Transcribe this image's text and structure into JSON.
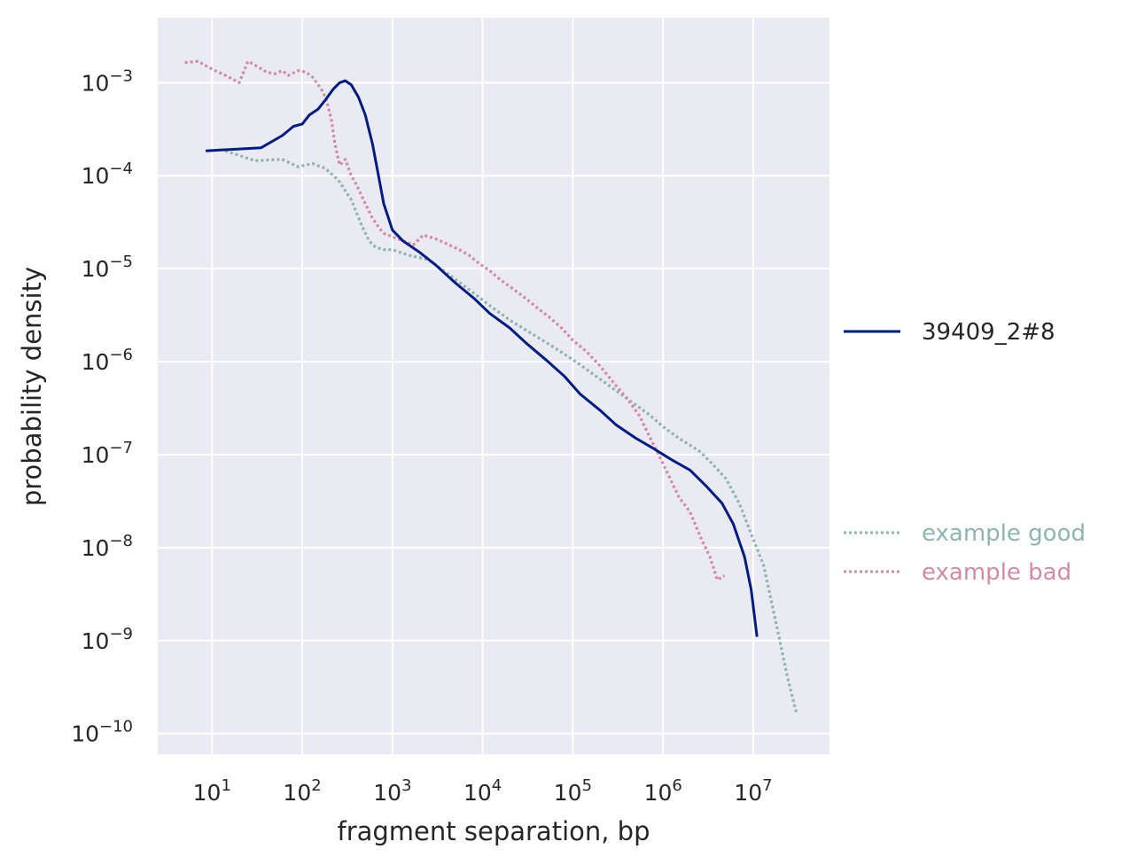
{
  "chart_data": {
    "type": "line",
    "title": "",
    "xlabel": "fragment separation, bp",
    "ylabel": "probability density",
    "xscale": "log",
    "yscale": "log",
    "xlim": [
      2.5,
      70000000
    ],
    "ylim": [
      6e-11,
      0.005
    ],
    "grid": true,
    "background": "#eaeaf2",
    "x_ticks": [
      {
        "value": 10,
        "base": "10",
        "exp": "1"
      },
      {
        "value": 100,
        "base": "10",
        "exp": "2"
      },
      {
        "value": 1000,
        "base": "10",
        "exp": "3"
      },
      {
        "value": 10000,
        "base": "10",
        "exp": "4"
      },
      {
        "value": 100000,
        "base": "10",
        "exp": "5"
      },
      {
        "value": 1000000,
        "base": "10",
        "exp": "6"
      },
      {
        "value": 10000000,
        "base": "10",
        "exp": "7"
      }
    ],
    "y_ticks": [
      {
        "value": 0.001,
        "base": "10",
        "exp": "−3"
      },
      {
        "value": 0.0001,
        "base": "10",
        "exp": "−4"
      },
      {
        "value": 1e-05,
        "base": "10",
        "exp": "−5"
      },
      {
        "value": 1e-06,
        "base": "10",
        "exp": "−6"
      },
      {
        "value": 1e-07,
        "base": "10",
        "exp": "−7"
      },
      {
        "value": 1e-08,
        "base": "10",
        "exp": "−8"
      },
      {
        "value": 1e-09,
        "base": "10",
        "exp": "−9"
      },
      {
        "value": 1e-10,
        "base": "10",
        "exp": "−10"
      }
    ],
    "series": [
      {
        "name": "39409_2#8",
        "color": "#001c7f",
        "style": "solid",
        "x": [
          8.5,
          35,
          60,
          80,
          100,
          120,
          150,
          180,
          220,
          260,
          300,
          350,
          420,
          500,
          600,
          700,
          800,
          1000,
          1300,
          2000,
          3000,
          5000,
          8000,
          12000,
          20000,
          30000,
          50000,
          80000,
          120000,
          200000,
          300000,
          500000,
          800000,
          1200000,
          2000000,
          3000000,
          4500000,
          6000000,
          8000000,
          9500000,
          11000000
        ],
        "y": [
          0.000185,
          0.0002,
          0.00027,
          0.00034,
          0.00036,
          0.00045,
          0.00052,
          0.00065,
          0.00085,
          0.001,
          0.00105,
          0.00095,
          0.0007,
          0.00045,
          0.00022,
          0.0001,
          5e-05,
          2.6e-05,
          2e-05,
          1.5e-05,
          1.1e-05,
          7e-06,
          4.8e-06,
          3.3e-06,
          2.3e-06,
          1.6e-06,
          1.05e-06,
          7e-07,
          4.5e-07,
          3e-07,
          2.1e-07,
          1.5e-07,
          1.15e-07,
          9e-08,
          6.8e-08,
          4.6e-08,
          3e-08,
          1.8e-08,
          8e-09,
          3.5e-09,
          1.1e-09
        ]
      },
      {
        "name": "example good",
        "color": "#8fb4b0",
        "style": "dotted",
        "x": [
          14,
          30,
          60,
          90,
          130,
          180,
          250,
          350,
          450,
          550,
          650,
          800,
          1000,
          1500,
          2500,
          4000,
          7000,
          12000,
          20000,
          35000,
          60000,
          100000,
          200000,
          400000,
          700000,
          1000000,
          1500000,
          2500000,
          3500000,
          5000000,
          7000000,
          9000000,
          13000000,
          18000000,
          24000000,
          30000000
        ],
        "y": [
          0.000185,
          0.000145,
          0.00015,
          0.000125,
          0.000135,
          0.00012,
          9e-05,
          5.5e-05,
          3e-05,
          2e-05,
          1.7e-05,
          1.6e-05,
          1.6e-05,
          1.4e-05,
          1.25e-05,
          9e-06,
          6e-06,
          4e-06,
          2.8e-06,
          2e-06,
          1.45e-06,
          1.05e-06,
          6.5e-07,
          4e-07,
          2.7e-07,
          2e-07,
          1.5e-07,
          1.1e-07,
          8e-08,
          5.5e-08,
          3e-08,
          1.6e-08,
          6.5e-09,
          1.5e-09,
          4e-10,
          1.7e-10
        ]
      },
      {
        "name": "example bad",
        "color": "#d28ba6",
        "style": "dotted",
        "x": [
          5,
          7,
          10,
          14,
          20,
          25,
          30,
          40,
          50,
          60,
          70,
          90,
          110,
          130,
          150,
          170,
          190,
          210,
          230,
          260,
          300,
          350,
          400,
          500,
          600,
          700,
          800,
          1000,
          1300,
          1700,
          2200,
          3000,
          4000,
          5500,
          7000,
          9000,
          12000,
          16000,
          22000,
          30000,
          40000,
          55000,
          75000,
          100000,
          140000,
          200000,
          280000,
          400000,
          550000,
          700000,
          850000,
          1000000,
          1200000,
          1500000,
          2000000,
          2600000,
          3300000,
          4000000,
          4800000
        ],
        "y": [
          0.00165,
          0.0017,
          0.0014,
          0.0012,
          0.001,
          0.0017,
          0.00155,
          0.0013,
          0.00125,
          0.00135,
          0.0012,
          0.00135,
          0.0013,
          0.00115,
          0.00095,
          0.0008,
          0.0006,
          0.0004,
          0.00022,
          0.00013,
          0.00015,
          0.0001,
          8e-05,
          5e-05,
          3.5e-05,
          2.8e-05,
          2.4e-05,
          2.2e-05,
          2e-05,
          1.8e-05,
          2.3e-05,
          2.1e-05,
          1.85e-05,
          1.6e-05,
          1.4e-05,
          1.15e-05,
          9.5e-06,
          7.5e-06,
          6e-06,
          4.8e-06,
          3.8e-06,
          3e-06,
          2.3e-06,
          1.7e-06,
          1.3e-06,
          9e-07,
          6e-07,
          4e-07,
          2.6e-07,
          1.6e-07,
          1.1e-07,
          8e-08,
          5.5e-08,
          3.5e-08,
          2.4e-08,
          1.3e-08,
          8e-09,
          4.5e-09,
          5e-09
        ]
      }
    ],
    "legend": {
      "placement": "right-outside",
      "entries": [
        "39409_2#8",
        "example good",
        "example bad"
      ]
    }
  }
}
